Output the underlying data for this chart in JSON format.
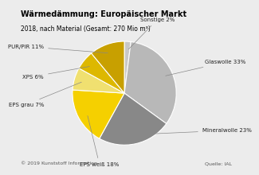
{
  "title": "Wärmedämmung: Europäischer Markt",
  "subtitle": "2018, nach Material (Gesamt: 270 Mio m³)",
  "labels": [
    "Sonstige",
    "Glaswolle",
    "Mineralwolle",
    "EPS weiß",
    "EPS grau",
    "XPS",
    "PUR/PIR"
  ],
  "values": [
    2,
    33,
    23,
    18,
    7,
    6,
    11
  ],
  "colors": [
    "#c8c8c8",
    "#b8b8b8",
    "#888888",
    "#f5d000",
    "#f0e070",
    "#ddb800",
    "#c8a000"
  ],
  "label_percents": [
    "Sonstige 2%",
    "Glaswolle 33%",
    "Mineralwolle 23%",
    "EPS weiß 18%",
    "EPS grau 7%",
    "XPS 6%",
    "PUR/PIR 11%"
  ],
  "footer_left": "© 2019 Kunststoff Information",
  "footer_right": "Quelle: IAL",
  "title_bg_color": "#f5c800",
  "bg_color": "#ececec",
  "startangle": 90
}
